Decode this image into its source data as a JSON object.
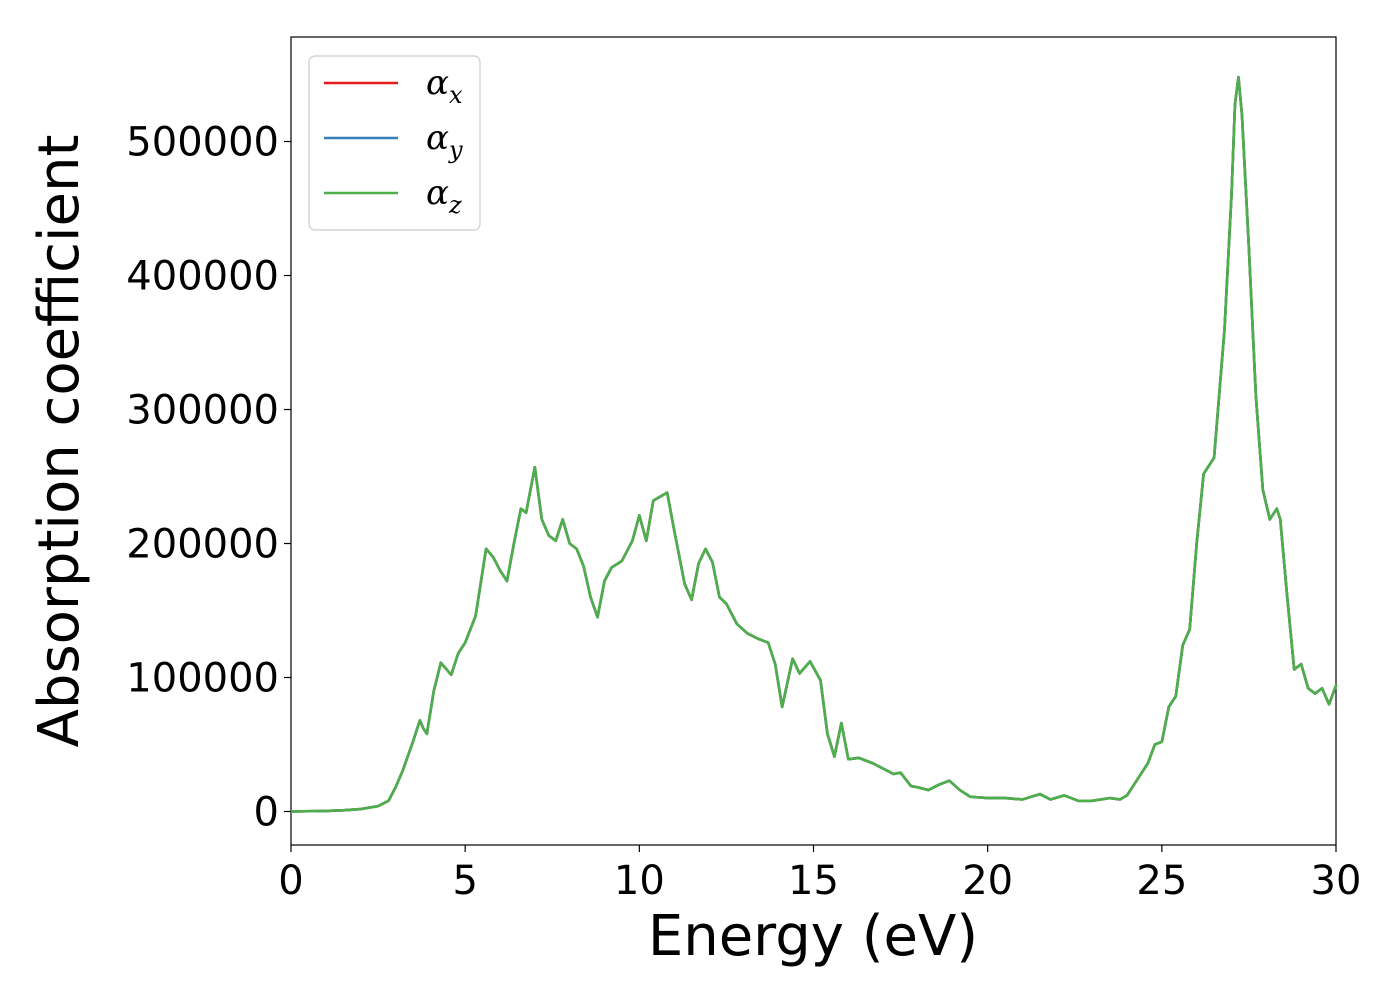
{
  "chart_data": {
    "type": "line",
    "title": "",
    "xlabel": "Energy (eV)",
    "ylabel": "Absorption coefficient",
    "xlim": [
      0,
      30
    ],
    "ylim": [
      -25000,
      578000
    ],
    "xticks": [
      0,
      5,
      10,
      15,
      20,
      25,
      30
    ],
    "xtick_labels": [
      "0",
      "5",
      "10",
      "15",
      "20",
      "25",
      "30"
    ],
    "yticks": [
      0,
      100000,
      200000,
      300000,
      400000,
      500000
    ],
    "ytick_labels": [
      "0",
      "100000",
      "200000",
      "300000",
      "400000",
      "500000"
    ],
    "grid": false,
    "legend_position": "top-left",
    "series": [
      {
        "name": "α_x",
        "legend_base": "α",
        "legend_sub": "x",
        "color": "#e41a1c",
        "x": [
          0,
          1,
          1.5,
          2,
          2.5,
          2.8,
          3,
          3.2,
          3.5,
          3.7,
          3.8,
          3.9,
          4.1,
          4.3,
          4.6,
          4.8,
          5,
          5.3,
          5.6,
          5.8,
          6,
          6.2,
          6.4,
          6.6,
          6.75,
          6.8,
          7.0,
          7.2,
          7.4,
          7.6,
          7.8,
          8.0,
          8.2,
          8.4,
          8.6,
          8.8,
          9.0,
          9.2,
          9.5,
          9.8,
          10.0,
          10.2,
          10.4,
          10.6,
          10.8,
          11.0,
          11.3,
          11.5,
          11.7,
          11.9,
          12.1,
          12.3,
          12.5,
          12.8,
          13.1,
          13.4,
          13.7,
          13.9,
          14.1,
          14.4,
          14.6,
          14.9,
          15.2,
          15.4,
          15.6,
          15.8,
          16.0,
          16.3,
          16.7,
          17.0,
          17.3,
          17.5,
          17.8,
          18.0,
          18.3,
          18.6,
          18.9,
          19.2,
          19.5,
          20.0,
          20.5,
          21.0,
          21.5,
          21.8,
          22.2,
          22.6,
          23.0,
          23.5,
          23.8,
          24.0,
          24.3,
          24.6,
          24.8,
          25.0,
          25.2,
          25.4,
          25.6,
          25.8,
          26.0,
          26.2,
          26.5,
          26.8,
          27.0,
          27.1,
          27.2,
          27.3,
          27.5,
          27.7,
          27.9,
          28.1,
          28.3,
          28.4,
          28.6,
          28.8,
          29.0,
          29.2,
          29.4,
          29.6,
          29.8,
          30.0
        ],
        "y": [
          0,
          400,
          900,
          1800,
          4000,
          8000,
          18000,
          30000,
          52000,
          68000,
          62000,
          58000,
          90000,
          111000,
          102000,
          118000,
          126000,
          146000,
          196000,
          190000,
          180000,
          172000,
          200000,
          226000,
          223000,
          230000,
          257000,
          218000,
          206000,
          202000,
          218000,
          200000,
          196000,
          183000,
          160000,
          145000,
          172000,
          182000,
          187000,
          202000,
          221000,
          202000,
          232000,
          235000,
          238000,
          210000,
          170000,
          158000,
          185000,
          196000,
          186000,
          160000,
          155000,
          140000,
          133000,
          129000,
          126000,
          110000,
          78000,
          114000,
          103000,
          112000,
          98000,
          58000,
          41000,
          66000,
          39000,
          40000,
          36000,
          32000,
          28000,
          29000,
          19000,
          18000,
          16000,
          20000,
          23000,
          16000,
          11000,
          10000,
          10000,
          9000,
          13000,
          9000,
          12000,
          8000,
          8000,
          10000,
          9000,
          12000,
          24000,
          36000,
          50000,
          52000,
          78000,
          86000,
          124000,
          136000,
          200000,
          252000,
          264000,
          360000,
          460000,
          528000,
          548000,
          520000,
          420000,
          310000,
          240000,
          218000,
          226000,
          218000,
          160000,
          106000,
          110000,
          92000,
          88000,
          92000,
          80000,
          94000
        ]
      },
      {
        "name": "α_y",
        "legend_base": "α",
        "legend_sub": "y",
        "color": "#377eb8",
        "x": [
          0,
          1,
          1.5,
          2,
          2.5,
          2.8,
          3,
          3.2,
          3.5,
          3.7,
          3.8,
          3.9,
          4.1,
          4.3,
          4.6,
          4.8,
          5,
          5.3,
          5.6,
          5.8,
          6,
          6.2,
          6.4,
          6.6,
          6.75,
          6.8,
          7.0,
          7.2,
          7.4,
          7.6,
          7.8,
          8.0,
          8.2,
          8.4,
          8.6,
          8.8,
          9.0,
          9.2,
          9.5,
          9.8,
          10.0,
          10.2,
          10.4,
          10.6,
          10.8,
          11.0,
          11.3,
          11.5,
          11.7,
          11.9,
          12.1,
          12.3,
          12.5,
          12.8,
          13.1,
          13.4,
          13.7,
          13.9,
          14.1,
          14.4,
          14.6,
          14.9,
          15.2,
          15.4,
          15.6,
          15.8,
          16.0,
          16.3,
          16.7,
          17.0,
          17.3,
          17.5,
          17.8,
          18.0,
          18.3,
          18.6,
          18.9,
          19.2,
          19.5,
          20.0,
          20.5,
          21.0,
          21.5,
          21.8,
          22.2,
          22.6,
          23.0,
          23.5,
          23.8,
          24.0,
          24.3,
          24.6,
          24.8,
          25.0,
          25.2,
          25.4,
          25.6,
          25.8,
          26.0,
          26.2,
          26.5,
          26.8,
          27.0,
          27.1,
          27.2,
          27.3,
          27.5,
          27.7,
          27.9,
          28.1,
          28.3,
          28.4,
          28.6,
          28.8,
          29.0,
          29.2,
          29.4,
          29.6,
          29.8,
          30.0
        ],
        "y": [
          0,
          400,
          900,
          1800,
          4000,
          8000,
          18000,
          30000,
          52000,
          68000,
          62000,
          58000,
          90000,
          111000,
          102000,
          118000,
          126000,
          146000,
          196000,
          190000,
          180000,
          172000,
          200000,
          226000,
          223000,
          230000,
          257000,
          218000,
          206000,
          202000,
          218000,
          200000,
          196000,
          183000,
          160000,
          145000,
          172000,
          182000,
          187000,
          202000,
          221000,
          202000,
          232000,
          235000,
          238000,
          210000,
          170000,
          158000,
          185000,
          196000,
          186000,
          160000,
          155000,
          140000,
          133000,
          129000,
          126000,
          110000,
          78000,
          114000,
          103000,
          112000,
          98000,
          58000,
          41000,
          66000,
          39000,
          40000,
          36000,
          32000,
          28000,
          29000,
          19000,
          18000,
          16000,
          20000,
          23000,
          16000,
          11000,
          10000,
          10000,
          9000,
          13000,
          9000,
          12000,
          8000,
          8000,
          10000,
          9000,
          12000,
          24000,
          36000,
          50000,
          52000,
          78000,
          86000,
          124000,
          136000,
          200000,
          252000,
          264000,
          360000,
          460000,
          528000,
          548000,
          520000,
          420000,
          310000,
          240000,
          218000,
          226000,
          218000,
          160000,
          106000,
          110000,
          92000,
          88000,
          92000,
          80000,
          94000
        ]
      },
      {
        "name": "α_z",
        "legend_base": "α",
        "legend_sub": "z",
        "color": "#4daf4a",
        "x": [
          0,
          1,
          1.5,
          2,
          2.5,
          2.8,
          3,
          3.2,
          3.5,
          3.7,
          3.8,
          3.9,
          4.1,
          4.3,
          4.6,
          4.8,
          5,
          5.3,
          5.6,
          5.8,
          6,
          6.2,
          6.4,
          6.6,
          6.75,
          6.8,
          7.0,
          7.2,
          7.4,
          7.6,
          7.8,
          8.0,
          8.2,
          8.4,
          8.6,
          8.8,
          9.0,
          9.2,
          9.5,
          9.8,
          10.0,
          10.2,
          10.4,
          10.6,
          10.8,
          11.0,
          11.3,
          11.5,
          11.7,
          11.9,
          12.1,
          12.3,
          12.5,
          12.8,
          13.1,
          13.4,
          13.7,
          13.9,
          14.1,
          14.4,
          14.6,
          14.9,
          15.2,
          15.4,
          15.6,
          15.8,
          16.0,
          16.3,
          16.7,
          17.0,
          17.3,
          17.5,
          17.8,
          18.0,
          18.3,
          18.6,
          18.9,
          19.2,
          19.5,
          20.0,
          20.5,
          21.0,
          21.5,
          21.8,
          22.2,
          22.6,
          23.0,
          23.5,
          23.8,
          24.0,
          24.3,
          24.6,
          24.8,
          25.0,
          25.2,
          25.4,
          25.6,
          25.8,
          26.0,
          26.2,
          26.5,
          26.8,
          27.0,
          27.1,
          27.2,
          27.3,
          27.5,
          27.7,
          27.9,
          28.1,
          28.3,
          28.4,
          28.6,
          28.8,
          29.0,
          29.2,
          29.4,
          29.6,
          29.8,
          30.0
        ],
        "y": [
          0,
          400,
          900,
          1800,
          4000,
          8000,
          18000,
          30000,
          52000,
          68000,
          62000,
          58000,
          90000,
          111000,
          102000,
          118000,
          126000,
          146000,
          196000,
          190000,
          180000,
          172000,
          200000,
          226000,
          223000,
          230000,
          257000,
          218000,
          206000,
          202000,
          218000,
          200000,
          196000,
          183000,
          160000,
          145000,
          172000,
          182000,
          187000,
          202000,
          221000,
          202000,
          232000,
          235000,
          238000,
          210000,
          170000,
          158000,
          185000,
          196000,
          186000,
          160000,
          155000,
          140000,
          133000,
          129000,
          126000,
          110000,
          78000,
          114000,
          103000,
          112000,
          98000,
          58000,
          41000,
          66000,
          39000,
          40000,
          36000,
          32000,
          28000,
          29000,
          19000,
          18000,
          16000,
          20000,
          23000,
          16000,
          11000,
          10000,
          10000,
          9000,
          13000,
          9000,
          12000,
          8000,
          8000,
          10000,
          9000,
          12000,
          24000,
          36000,
          50000,
          52000,
          78000,
          86000,
          124000,
          136000,
          200000,
          252000,
          264000,
          360000,
          460000,
          528000,
          548000,
          520000,
          420000,
          310000,
          240000,
          218000,
          226000,
          218000,
          160000,
          106000,
          110000,
          92000,
          88000,
          92000,
          80000,
          94000
        ]
      }
    ]
  }
}
